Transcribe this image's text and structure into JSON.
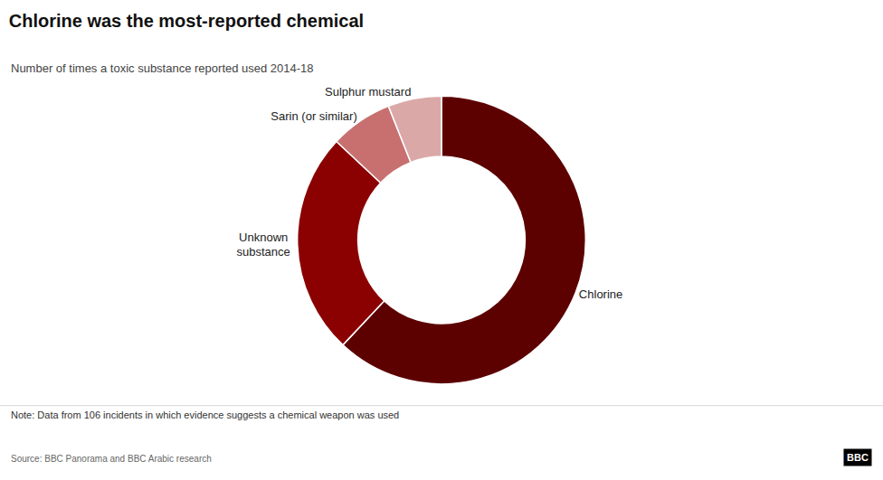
{
  "chart_data": {
    "type": "donut",
    "title": "Chlorine was the most-reported chemical",
    "subtitle": "Number of times a toxic substance reported used 2014-18",
    "note": "Note: Data from 106 incidents in which evidence suggests a chemical weapon was used",
    "source": "Source: BBC Panorama and BBC Arabic research",
    "logo": "BBC",
    "categories": [
      "Chlorine",
      "Unknown\nsubstance",
      "Sarin (or similar)",
      "Sulphur mustard"
    ],
    "values": [
      62,
      25,
      7,
      6
    ],
    "colors": [
      "#5c0000",
      "#8b0000",
      "#c87070",
      "#dba8a8"
    ],
    "legend": false,
    "data_labels": false
  }
}
